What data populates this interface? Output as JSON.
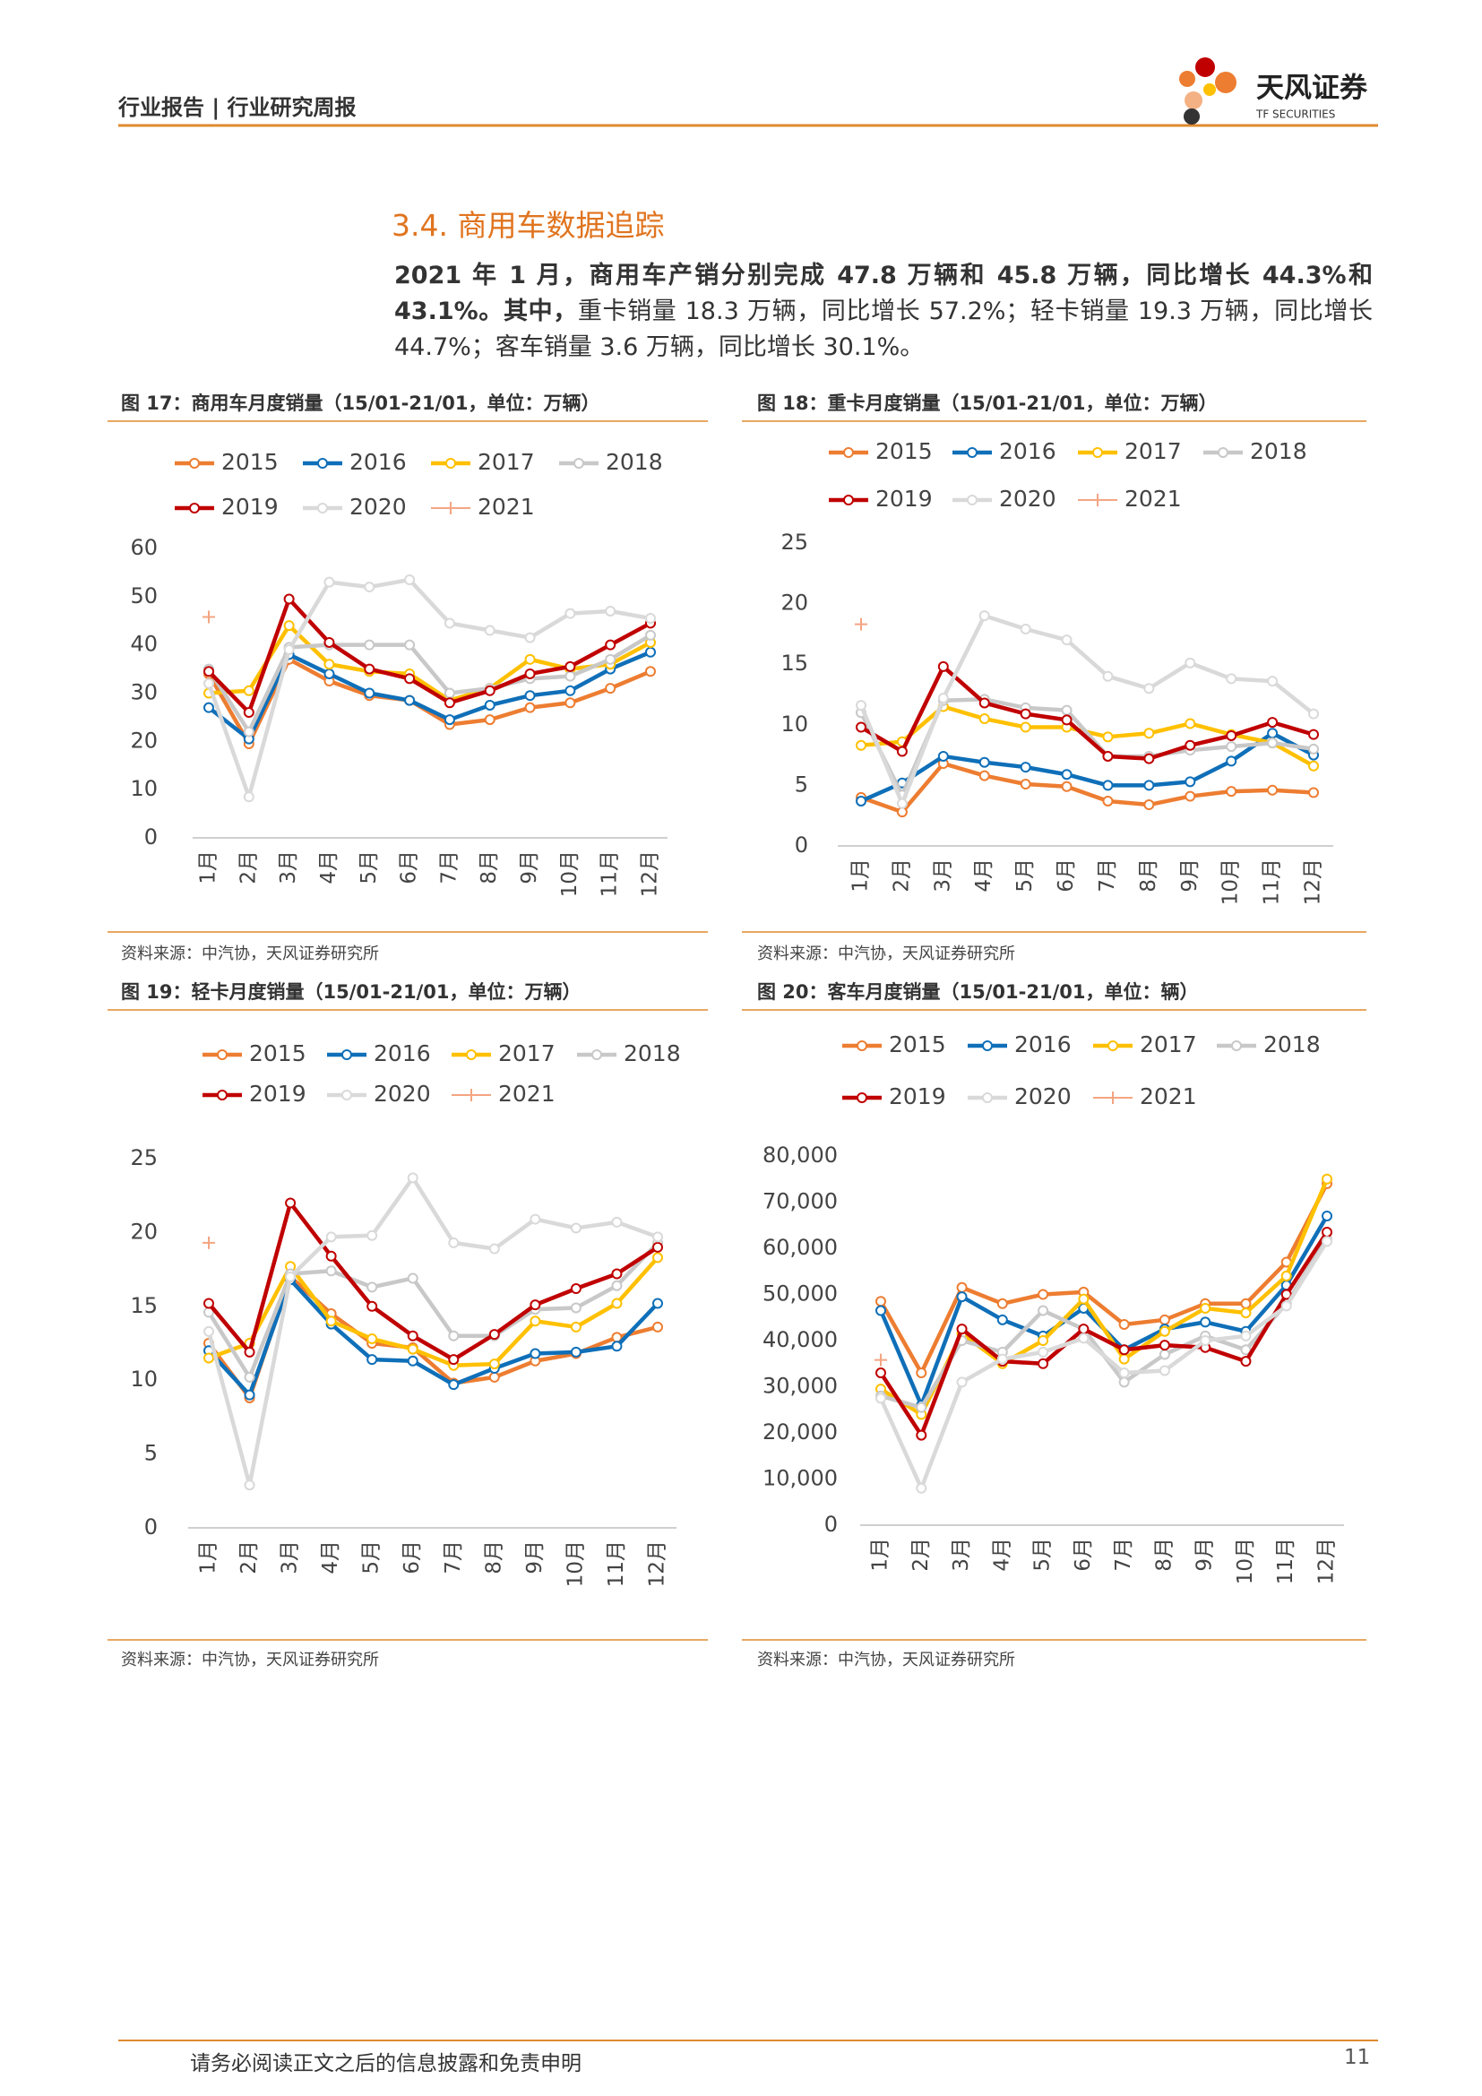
{
  "header": {
    "title": "行业报告 | 行业研究周报",
    "logo_name": "天风证券",
    "logo_en": "TF SECURITIES"
  },
  "section_title": "3.4. 商用车数据追踪",
  "paragraph": {
    "bold": "2021 年 1 月，商用车产销分别完成 47.8 万辆和 45.8 万辆，同比增长 44.3%和 43.1%。其中，",
    "normal": "重卡销量 18.3 万辆，同比增长 57.2%；轻卡销量 19.3 万辆，同比增长 44.7%；客车销量 3.6 万辆，同比增长 30.1%。"
  },
  "figures": [
    {
      "caption": "图 17：商用车月度销量（15/01-21/01，单位：万辆）",
      "source": "资料来源：中汽协，天风证券研究所"
    },
    {
      "caption": "图 18：重卡月度销量（15/01-21/01，单位：万辆）",
      "source": "资料来源：中汽协，天风证券研究所"
    },
    {
      "caption": "图 19：轻卡月度销量（15/01-21/01，单位：万辆）",
      "source": "资料来源：中汽协，天风证券研究所"
    },
    {
      "caption": "图 20：客车月度销量（15/01-21/01，单位：辆）",
      "source": "资料来源：中汽协，天风证券研究所"
    }
  ],
  "chart_data": [
    {
      "type": "line",
      "categories": [
        "1月",
        "2月",
        "3月",
        "4月",
        "5月",
        "6月",
        "7月",
        "8月",
        "9月",
        "10月",
        "11月",
        "12月"
      ],
      "ylim": [
        0,
        60
      ],
      "yticks": [
        0,
        10,
        20,
        30,
        40,
        50,
        60
      ],
      "series": [
        {
          "name": "2015",
          "color": "#ed7d31",
          "marker": "circle",
          "values": [
            34,
            19.5,
            37,
            32.5,
            29.5,
            28.5,
            23.5,
            24.5,
            27,
            28,
            31,
            34.5
          ]
        },
        {
          "name": "2016",
          "color": "#0f6fb8",
          "marker": "circle",
          "values": [
            27,
            20.5,
            38,
            34,
            30,
            28.5,
            24.5,
            27.5,
            29.5,
            30.5,
            35,
            38.5
          ]
        },
        {
          "name": "2017",
          "color": "#ffc000",
          "marker": "circle",
          "values": [
            30,
            30.5,
            44,
            36,
            34.5,
            34,
            28.5,
            31,
            37,
            35,
            36,
            40.5
          ]
        },
        {
          "name": "2018",
          "color": "#c8c8c8",
          "marker": "circle",
          "values": [
            35,
            22,
            39.5,
            40,
            40,
            40,
            30,
            31,
            33,
            33.5,
            37,
            42
          ]
        },
        {
          "name": "2019",
          "color": "#c00000",
          "marker": "circle",
          "values": [
            34.5,
            26,
            49.5,
            40.5,
            35,
            33,
            28,
            30.5,
            34,
            35.5,
            40,
            44.5
          ]
        },
        {
          "name": "2020",
          "color": "#d9d9d9",
          "marker": "circle",
          "values": [
            32,
            8.5,
            39,
            53,
            52,
            53.5,
            44.5,
            43,
            41.5,
            46.5,
            47,
            45.5
          ]
        },
        {
          "name": "2021",
          "color": "#f4a582",
          "marker": "plus",
          "values": [
            45.8,
            null,
            null,
            null,
            null,
            null,
            null,
            null,
            null,
            null,
            null,
            null
          ]
        }
      ]
    },
    {
      "type": "line",
      "categories": [
        "1月",
        "2月",
        "3月",
        "4月",
        "5月",
        "6月",
        "7月",
        "8月",
        "9月",
        "10月",
        "11月",
        "12月"
      ],
      "ylim": [
        0,
        25
      ],
      "yticks": [
        0,
        5,
        10,
        15,
        20,
        25
      ],
      "series": [
        {
          "name": "2015",
          "color": "#ed7d31",
          "marker": "circle",
          "values": [
            4,
            2.8,
            6.8,
            5.8,
            5.1,
            4.9,
            3.7,
            3.4,
            4.1,
            4.5,
            4.6,
            4.4
          ]
        },
        {
          "name": "2016",
          "color": "#0f6fb8",
          "marker": "circle",
          "values": [
            3.7,
            5.2,
            7.4,
            6.9,
            6.5,
            5.9,
            5,
            5,
            5.3,
            7,
            9.3,
            7.5
          ]
        },
        {
          "name": "2017",
          "color": "#ffc000",
          "marker": "circle",
          "values": [
            8.3,
            8.6,
            11.5,
            10.5,
            9.8,
            9.8,
            9,
            9.3,
            10.1,
            9.2,
            8.5,
            6.6
          ]
        },
        {
          "name": "2018",
          "color": "#c8c8c8",
          "marker": "circle",
          "values": [
            11,
            4.2,
            12,
            12.1,
            11.4,
            11.2,
            7.4,
            7.4,
            7.9,
            8.2,
            8.5,
            8
          ]
        },
        {
          "name": "2019",
          "color": "#c00000",
          "marker": "circle",
          "values": [
            9.8,
            7.8,
            14.8,
            11.8,
            10.9,
            10.4,
            7.4,
            7.2,
            8.3,
            9.1,
            10.2,
            9.2
          ]
        },
        {
          "name": "2020",
          "color": "#d9d9d9",
          "marker": "circle",
          "values": [
            11.6,
            3.5,
            12.2,
            19,
            17.9,
            17,
            14,
            13,
            15.1,
            13.8,
            13.6,
            10.9
          ]
        },
        {
          "name": "2021",
          "color": "#f4a582",
          "marker": "plus",
          "values": [
            18.3,
            null,
            null,
            null,
            null,
            null,
            null,
            null,
            null,
            null,
            null,
            null
          ]
        }
      ]
    },
    {
      "type": "line",
      "categories": [
        "1月",
        "2月",
        "3月",
        "4月",
        "5月",
        "6月",
        "7月",
        "8月",
        "9月",
        "10月",
        "11月",
        "12月"
      ],
      "ylim": [
        0,
        25
      ],
      "yticks": [
        0,
        5,
        10,
        15,
        20,
        25
      ],
      "series": [
        {
          "name": "2015",
          "color": "#ed7d31",
          "marker": "circle",
          "values": [
            12.5,
            8.8,
            17,
            14.5,
            12.5,
            12.2,
            9.8,
            10.2,
            11.3,
            11.8,
            12.9,
            13.6
          ]
        },
        {
          "name": "2016",
          "color": "#0f6fb8",
          "marker": "circle",
          "values": [
            12,
            9,
            16.8,
            13.8,
            11.4,
            11.3,
            9.7,
            10.8,
            11.8,
            11.9,
            12.3,
            15.2
          ]
        },
        {
          "name": "2017",
          "color": "#ffc000",
          "marker": "circle",
          "values": [
            11.5,
            12.5,
            17.7,
            14,
            12.8,
            12.1,
            11,
            11.1,
            14,
            13.6,
            15.2,
            18.3
          ]
        },
        {
          "name": "2018",
          "color": "#c8c8c8",
          "marker": "circle",
          "values": [
            14.6,
            10.2,
            17.2,
            17.4,
            16.3,
            16.9,
            13,
            13,
            14.8,
            14.9,
            16.4,
            19.3
          ]
        },
        {
          "name": "2019",
          "color": "#c00000",
          "marker": "circle",
          "values": [
            15.2,
            11.9,
            22,
            18.4,
            15,
            13,
            11.4,
            13.1,
            15.1,
            16.2,
            17.2,
            19
          ]
        },
        {
          "name": "2020",
          "color": "#d9d9d9",
          "marker": "circle",
          "values": [
            13.3,
            2.9,
            17,
            19.7,
            19.8,
            23.7,
            19.3,
            18.9,
            20.9,
            20.3,
            20.7,
            19.7
          ]
        },
        {
          "name": "2021",
          "color": "#f4a582",
          "marker": "plus",
          "values": [
            19.3,
            null,
            null,
            null,
            null,
            null,
            null,
            null,
            null,
            null,
            null,
            null
          ]
        }
      ]
    },
    {
      "type": "line",
      "categories": [
        "1月",
        "2月",
        "3月",
        "4月",
        "5月",
        "6月",
        "7月",
        "8月",
        "9月",
        "10月",
        "11月",
        "12月"
      ],
      "ylim": [
        0,
        80000
      ],
      "yticks": [
        0,
        {
          "value": 10000,
          "label": "10,000"
        },
        {
          "value": 20000,
          "label": "20,000"
        },
        {
          "value": 30000,
          "label": "30,000"
        },
        {
          "value": 40000,
          "label": "40,000"
        },
        {
          "value": 50000,
          "label": "50,000"
        },
        {
          "value": 60000,
          "label": "60,000"
        },
        {
          "value": 70000,
          "label": "70,000"
        },
        {
          "value": 80000,
          "label": "80,000"
        }
      ],
      "series": [
        {
          "name": "2015",
          "color": "#ed7d31",
          "marker": "circle",
          "values": [
            48500,
            33000,
            51500,
            48000,
            50000,
            50500,
            43500,
            44500,
            48000,
            48000,
            57000,
            74000
          ]
        },
        {
          "name": "2016",
          "color": "#0f6fb8",
          "marker": "circle",
          "values": [
            46500,
            26000,
            49500,
            44500,
            41000,
            47000,
            38000,
            42500,
            44000,
            42000,
            52000,
            67000
          ]
        },
        {
          "name": "2017",
          "color": "#ffc000",
          "marker": "circle",
          "values": [
            29500,
            24000,
            41500,
            35000,
            40000,
            49000,
            36000,
            42000,
            47000,
            46000,
            54000,
            75000
          ]
        },
        {
          "name": "2018",
          "color": "#c8c8c8",
          "marker": "circle",
          "values": [
            28000,
            25500,
            40000,
            37500,
            46500,
            42500,
            31000,
            37000,
            41000,
            38000,
            48000,
            62000
          ]
        },
        {
          "name": "2019",
          "color": "#c00000",
          "marker": "circle",
          "values": [
            33000,
            19500,
            42500,
            35500,
            35000,
            42500,
            38000,
            39000,
            38500,
            35500,
            50000,
            63500
          ]
        },
        {
          "name": "2020",
          "color": "#d9d9d9",
          "marker": "circle",
          "values": [
            27500,
            8000,
            31000,
            36000,
            37500,
            40500,
            33000,
            33500,
            40000,
            41000,
            47500,
            61500
          ]
        },
        {
          "name": "2021",
          "color": "#f4a582",
          "marker": "plus",
          "values": [
            35800,
            null,
            null,
            null,
            null,
            null,
            null,
            null,
            null,
            null,
            null,
            null
          ]
        }
      ]
    }
  ],
  "footer": {
    "disclaimer": "请务必阅读正文之后的信息披露和免责申明",
    "page": "11"
  }
}
